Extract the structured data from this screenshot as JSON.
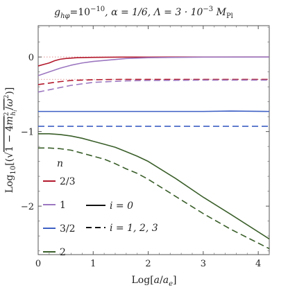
{
  "chart_data": {
    "type": "line",
    "title": "g_{hφ}=10^{−10}, α=1/6, Λ=3·10^{−3} M_{Pl}",
    "title_parts": {
      "t1": "g",
      "t1sub": "hφ",
      "t2": "=10",
      "t2sup": "−10",
      "t3": ", α = 1/6, Λ = 3 · 10",
      "t3sup": "−3",
      "t4": "M",
      "t4sub": "Pl"
    },
    "xlabel": "Log[a/a_e]",
    "xlabel_parts": {
      "pre": "Log[",
      "a": "a",
      "slash": "/",
      "ae": "a",
      "aesub": "e",
      "post": "]"
    },
    "ylabel": "Log10[(√(1−4m_{h_i}^2/ω^2))]",
    "ylabel_parts": {
      "pre": "Log",
      "presub": "10",
      "open": "[(",
      "sqrt": "√",
      "one": "1 − 4",
      "m": "m",
      "msup": "2",
      "msub": "h",
      "msubsub": "i",
      "slash": "/",
      "omega": "ω",
      "omegasup": "2",
      "close": ")]"
    },
    "xlim": [
      0,
      4.2
    ],
    "ylim": [
      -2.65,
      0.42
    ],
    "x_ticks": [
      0,
      1,
      2,
      3,
      4
    ],
    "x_tick_labels": [
      "0",
      "1",
      "2",
      "3",
      "4"
    ],
    "y_ticks": [
      -2,
      -1,
      0
    ],
    "y_tick_labels": [
      "−2",
      "−1",
      "0"
    ],
    "reference_lines": [
      0
    ],
    "legend": {
      "placement": "bottom-left",
      "header": "n",
      "entries": [
        {
          "label": "2/3",
          "color": "#b2182b"
        },
        {
          "label": "1",
          "color": "#9c77c0"
        },
        {
          "label": "3/2",
          "color": "#3d5fc4"
        },
        {
          "label": "2",
          "color": "#3a5f2a"
        }
      ],
      "style_entries": [
        {
          "label": "i = 0",
          "style": "solid"
        },
        {
          "label": "i = 1, 2, 3",
          "style": "dashed"
        }
      ]
    },
    "series": [
      {
        "n": "2/3",
        "i": "0",
        "color": "#b2182b",
        "style": "solid",
        "x": [
          0,
          0.1,
          0.2,
          0.3,
          0.4,
          0.5,
          0.7,
          1.0,
          1.5,
          2.0,
          3.0,
          4.2
        ],
        "y": [
          -0.12,
          -0.1,
          -0.08,
          -0.05,
          -0.03,
          -0.02,
          -0.01,
          -0.005,
          -0.002,
          -0.001,
          0,
          0
        ]
      },
      {
        "n": "2/3",
        "i": "1, 2, 3",
        "color": "#b2182b",
        "style": "dashed",
        "x": [
          0,
          0.2,
          0.4,
          0.6,
          0.8,
          1.0,
          1.5,
          2.0,
          3.0,
          4.2
        ],
        "y": [
          -0.37,
          -0.35,
          -0.33,
          -0.315,
          -0.31,
          -0.305,
          -0.3,
          -0.3,
          -0.3,
          -0.3
        ]
      },
      {
        "n": "1",
        "i": "0",
        "color": "#9c77c0",
        "style": "solid",
        "x": [
          0,
          0.2,
          0.4,
          0.6,
          0.8,
          1.0,
          1.3,
          1.6,
          2.0,
          2.5,
          3.0,
          4.2
        ],
        "y": [
          -0.25,
          -0.2,
          -0.15,
          -0.11,
          -0.08,
          -0.06,
          -0.04,
          -0.02,
          -0.01,
          -0.005,
          -0.002,
          0
        ]
      },
      {
        "n": "1",
        "i": "1, 2, 3",
        "color": "#9c77c0",
        "style": "dashed",
        "x": [
          0,
          0.2,
          0.4,
          0.6,
          0.8,
          1.0,
          1.3,
          1.6,
          2.0,
          3.0,
          4.2
        ],
        "y": [
          -0.47,
          -0.44,
          -0.41,
          -0.38,
          -0.36,
          -0.34,
          -0.33,
          -0.32,
          -0.315,
          -0.31,
          -0.31
        ]
      },
      {
        "n": "3/2",
        "i": "0",
        "color": "#3d5fc4",
        "style": "solid",
        "x": [
          0,
          1.0,
          2.0,
          3.0,
          3.5,
          4.2
        ],
        "y": [
          -0.73,
          -0.73,
          -0.73,
          -0.73,
          -0.725,
          -0.73
        ]
      },
      {
        "n": "3/2",
        "i": "1, 2, 3",
        "color": "#3d5fc4",
        "style": "dashed",
        "x": [
          0,
          1.0,
          2.0,
          3.0,
          4.2
        ],
        "y": [
          -0.93,
          -0.93,
          -0.93,
          -0.93,
          -0.93
        ]
      },
      {
        "n": "2",
        "i": "0",
        "color": "#3a5f2a",
        "style": "solid",
        "x": [
          0,
          0.2,
          0.4,
          0.6,
          0.8,
          1.0,
          1.2,
          1.4,
          1.6,
          1.8,
          2.0,
          2.5,
          3.0,
          3.5,
          4.2
        ],
        "y": [
          -1.03,
          -1.03,
          -1.04,
          -1.06,
          -1.09,
          -1.13,
          -1.17,
          -1.21,
          -1.27,
          -1.33,
          -1.4,
          -1.63,
          -1.88,
          -2.11,
          -2.44
        ]
      },
      {
        "n": "2",
        "i": "1, 2, 3",
        "color": "#3a5f2a",
        "style": "dashed",
        "x": [
          0,
          0.2,
          0.4,
          0.6,
          0.8,
          1.0,
          1.2,
          1.4,
          1.6,
          1.8,
          2.0,
          2.5,
          3.0,
          3.5,
          4.2
        ],
        "y": [
          -1.22,
          -1.22,
          -1.23,
          -1.25,
          -1.29,
          -1.33,
          -1.37,
          -1.43,
          -1.5,
          -1.56,
          -1.64,
          -1.87,
          -2.1,
          -2.31,
          -2.57
        ]
      }
    ]
  }
}
